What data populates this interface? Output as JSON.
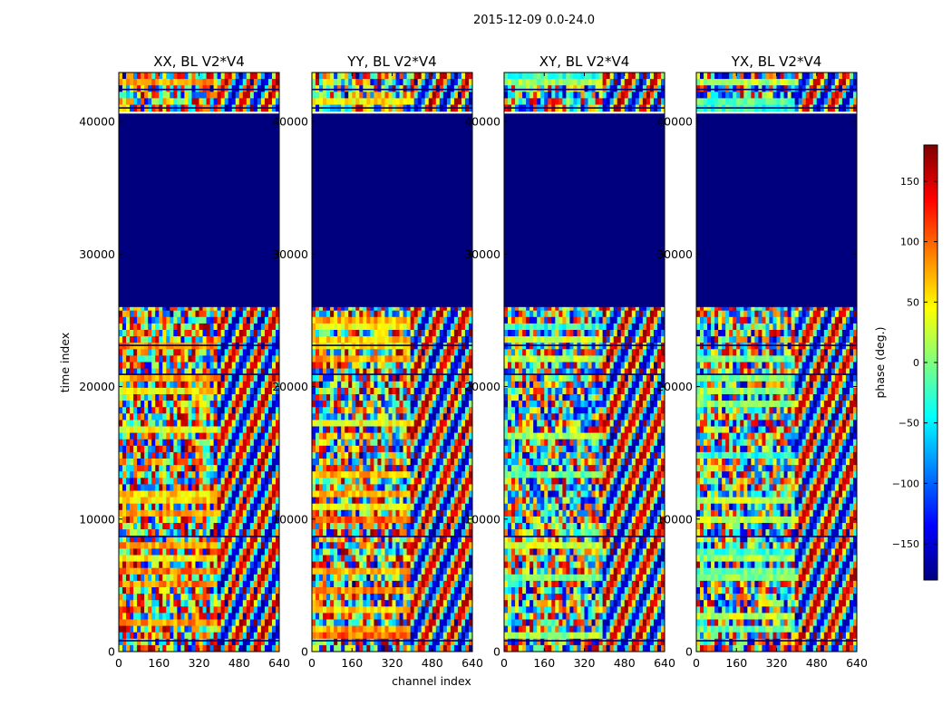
{
  "figure": {
    "suptitle": "2015-12-09 0.0-24.0"
  },
  "chart_data": {
    "type": "heatmap",
    "title": "2015-12-09 0.0-24.0",
    "xlabel": "channel index",
    "ylabel": "time index",
    "xlim": [
      0,
      640
    ],
    "ylim": [
      0,
      43700
    ],
    "xticks": [
      0,
      160,
      320,
      480,
      640
    ],
    "xtick_labels": [
      "0",
      "160",
      "320",
      "480",
      "640"
    ],
    "yticks": [
      0,
      10000,
      20000,
      30000,
      40000
    ],
    "ytick_labels": [
      "0",
      "10000",
      "20000",
      "30000",
      "40000"
    ],
    "flagged_time_range": [
      26000,
      40600
    ],
    "panels": [
      {
        "title": "XX, BL V2*V4"
      },
      {
        "title": "YY, BL V2*V4"
      },
      {
        "title": "XY, BL V2*V4"
      },
      {
        "title": "YX, BL V2*V4"
      }
    ],
    "colorbar": {
      "label": "phase (deg.)",
      "vmin": -180,
      "vmax": 180,
      "colormap": "jet",
      "ticks": [
        150,
        100,
        50,
        0,
        -50,
        -100,
        -150
      ],
      "tick_labels": [
        "150",
        "100",
        "50",
        "0",
        "−50",
        "−100",
        "−150"
      ]
    },
    "colors": {
      "jet": [
        "#00007f",
        "#0000ff",
        "#007fff",
        "#00ffff",
        "#7fff7f",
        "#ffff00",
        "#ff7f00",
        "#ff0000",
        "#7f0000"
      ]
    }
  }
}
